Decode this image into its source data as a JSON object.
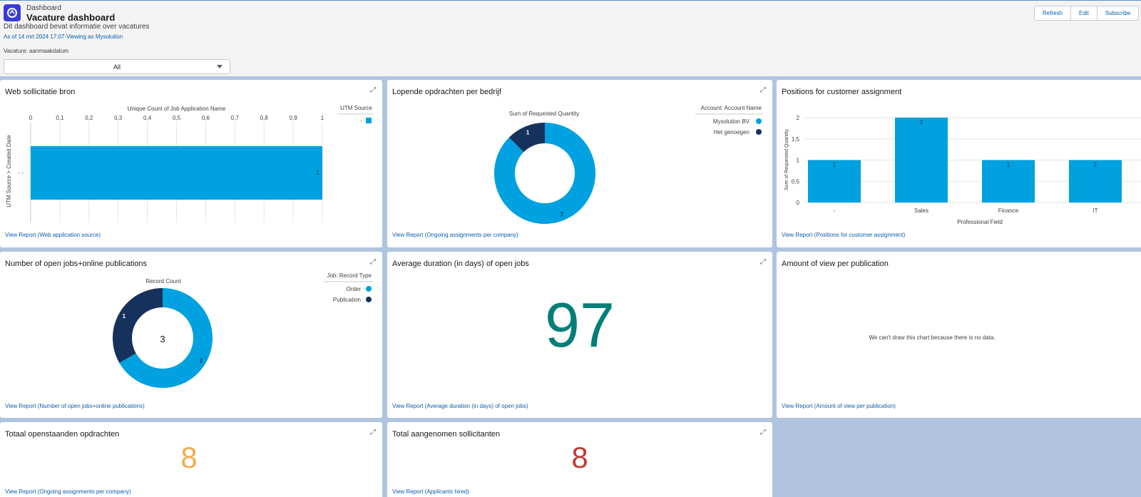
{
  "header": {
    "kicker": "Dashboard",
    "title": "Vacature dashboard",
    "subtitle": "Dit dashboard bevat informatie over vacatures",
    "as_of": "As of 14 mrt 2024 17:07·Viewing as Mysolution",
    "filter_label": "Vacature: aanmaakdatum",
    "filter_value": "All",
    "buttons": {
      "refresh": "Refresh",
      "edit": "Edit",
      "subscribe": "Subscribe"
    }
  },
  "colors": {
    "light_blue": "#00a1e0",
    "dark_navy": "#16325c",
    "teal": "#027e7a",
    "orange": "#f7a94f",
    "red": "#c23934"
  },
  "cards": {
    "web_bron": {
      "title": "Web sollicitatie bron",
      "link": "View Report (Web application source)"
    },
    "lopende": {
      "title": "Lopende opdrachten per bedrijf",
      "link": "View Report (Ongoing assignments per company)"
    },
    "positions": {
      "title": "Positions for customer assignment",
      "link": "View Report (Positions for customer assignment)"
    },
    "open_jobs": {
      "title": "Number of open jobs+online publications",
      "link": "View Report (Number of open jobs+online publications)",
      "center": "3"
    },
    "avg_duration": {
      "title": "Average duration (in days) of open jobs",
      "link": "View Report (Average duration (in days) of open jobs)",
      "value": "97"
    },
    "views": {
      "title": "Amount of view per publication",
      "link": "View Report (Amount of view per publication)",
      "nodata": "We can't draw this chart because there is no data."
    },
    "totaal": {
      "title": "Totaal openstaanden opdrachten",
      "link": "View Report (Ongoing assignments per company)",
      "value": "8"
    },
    "aangenomen": {
      "title": "Total aangenomen sollicitanten",
      "link": "View Report (Applicants hired)",
      "value": "8"
    }
  },
  "chart_data": [
    {
      "type": "bar",
      "orientation": "horizontal",
      "xlabel": "Unique Count of Job Application Name",
      "ylabel": "UTM Source > Created Date",
      "x_ticks": [
        "0",
        "0,1",
        "0,2",
        "0,3",
        "0,4",
        "0,5",
        "0,6",
        "0,7",
        "0,8",
        "0,9",
        "1"
      ],
      "xlim": [
        0,
        1
      ],
      "categories": [
        "- -"
      ],
      "values": [
        1
      ],
      "data_labels": [
        "1"
      ],
      "legend_title": "UTM Source",
      "legend": [
        "-"
      ]
    },
    {
      "type": "pie",
      "donut": true,
      "title": "Sum of Requested Quantity",
      "legend_title": "Account: Account Name",
      "labels": [
        "Mysolution BV",
        "Het genoegen"
      ],
      "values": [
        7,
        1
      ]
    },
    {
      "type": "bar",
      "xlabel": "Professional Field",
      "ylabel": "Sum of Requested Quantity",
      "categories": [
        "-",
        "Sales",
        "Finance",
        "IT"
      ],
      "values": [
        1,
        2,
        1,
        1
      ],
      "y_ticks": [
        "0",
        "0,5",
        "1",
        "1,5",
        "2"
      ],
      "ylim": [
        0,
        2
      ]
    },
    {
      "type": "pie",
      "donut": true,
      "title": "Record Count",
      "legend_title": "Job: Record Type",
      "labels": [
        "Order",
        "Publication"
      ],
      "values": [
        2,
        1
      ]
    }
  ]
}
